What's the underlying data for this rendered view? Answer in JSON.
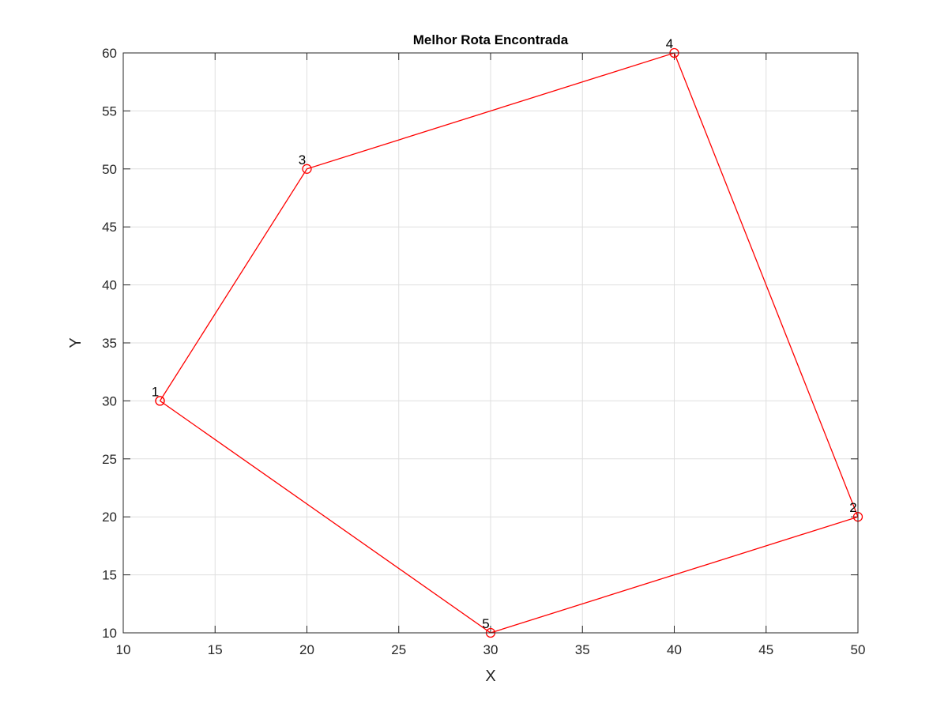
{
  "chart_data": {
    "type": "line",
    "title": "Melhor Rota Encontrada",
    "xlabel": "X",
    "ylabel": "Y",
    "xlim": [
      10,
      50
    ],
    "ylim": [
      10,
      60
    ],
    "xticks": [
      10,
      15,
      20,
      25,
      30,
      35,
      40,
      45,
      50
    ],
    "yticks": [
      10,
      15,
      20,
      25,
      30,
      35,
      40,
      45,
      50,
      55,
      60
    ],
    "grid": true,
    "series": [
      {
        "color": "#ff0000",
        "marker": "circle",
        "x": [
          12,
          20,
          40,
          50,
          30,
          12
        ],
        "y": [
          30,
          50,
          60,
          20,
          10,
          30
        ]
      }
    ],
    "point_labels": [
      {
        "text": "1",
        "x": 12,
        "y": 30
      },
      {
        "text": "3",
        "x": 20,
        "y": 50
      },
      {
        "text": "4",
        "x": 40,
        "y": 60
      },
      {
        "text": "2",
        "x": 50,
        "y": 20
      },
      {
        "text": "5",
        "x": 30,
        "y": 10
      }
    ]
  }
}
